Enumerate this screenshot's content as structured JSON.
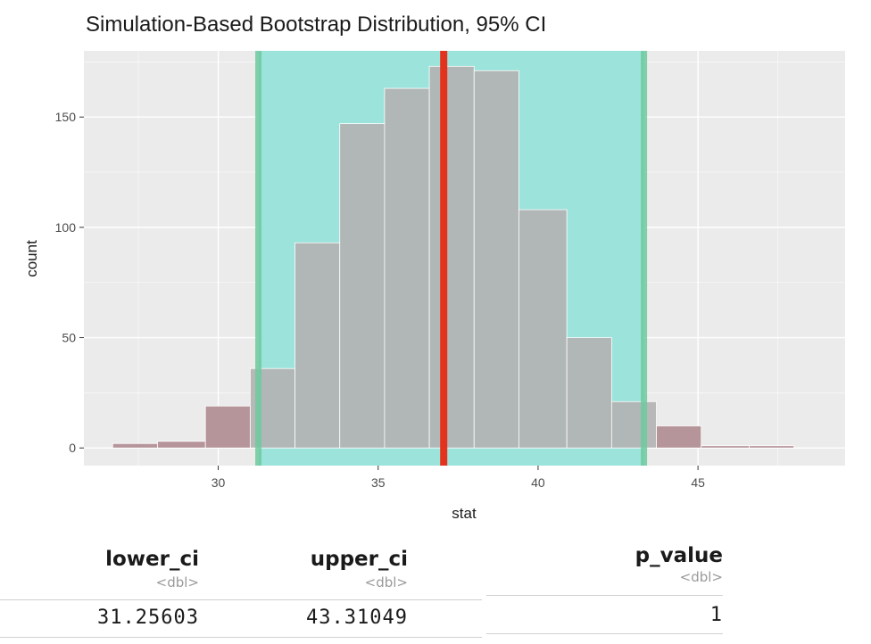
{
  "chart_data": {
    "type": "bar",
    "title": "Simulation-Based Bootstrap Distribution, 95% CI",
    "xlabel": "stat",
    "ylabel": "count",
    "xlim": [
      25.8,
      49.6
    ],
    "ylim": [
      -8,
      180
    ],
    "x_ticks": [
      30,
      35,
      40,
      45
    ],
    "y_ticks": [
      0,
      50,
      100,
      150
    ],
    "grid": true,
    "bins": [
      {
        "x0": 26.7,
        "x1": 28.1,
        "count": 2
      },
      {
        "x0": 28.1,
        "x1": 29.6,
        "count": 3
      },
      {
        "x0": 29.6,
        "x1": 31.0,
        "count": 19
      },
      {
        "x0": 31.0,
        "x1": 32.4,
        "count": 36
      },
      {
        "x0": 32.4,
        "x1": 33.8,
        "count": 93
      },
      {
        "x0": 33.8,
        "x1": 35.2,
        "count": 147
      },
      {
        "x0": 35.2,
        "x1": 36.6,
        "count": 163
      },
      {
        "x0": 36.6,
        "x1": 38.0,
        "count": 173
      },
      {
        "x0": 38.0,
        "x1": 39.4,
        "count": 171
      },
      {
        "x0": 39.4,
        "x1": 40.9,
        "count": 108
      },
      {
        "x0": 40.9,
        "x1": 42.3,
        "count": 50
      },
      {
        "x0": 42.3,
        "x1": 43.7,
        "count": 21
      },
      {
        "x0": 43.7,
        "x1": 45.1,
        "count": 10
      },
      {
        "x0": 45.1,
        "x1": 46.6,
        "count": 1
      },
      {
        "x0": 46.6,
        "x1": 48.0,
        "count": 1
      }
    ],
    "ci": {
      "lower": 31.25603,
      "upper": 43.31049
    },
    "observed_stat": 37.05,
    "colors": {
      "panel_bg": "#ebebeb",
      "grid": "#ffffff",
      "bar_fill": "#b3b3b3",
      "bar_outside": "#b5949a",
      "ci_fill": "#9be3db",
      "ci_line": "#6fcaa0",
      "obs_line": "#e3321d"
    }
  },
  "table_ci": {
    "columns": [
      {
        "name": "lower_ci",
        "type": "<dbl>",
        "value": "31.25603"
      },
      {
        "name": "upper_ci",
        "type": "<dbl>",
        "value": "43.31049"
      }
    ]
  },
  "table_p": {
    "columns": [
      {
        "name": "p_value",
        "type": "<dbl>",
        "value": "1"
      }
    ]
  }
}
